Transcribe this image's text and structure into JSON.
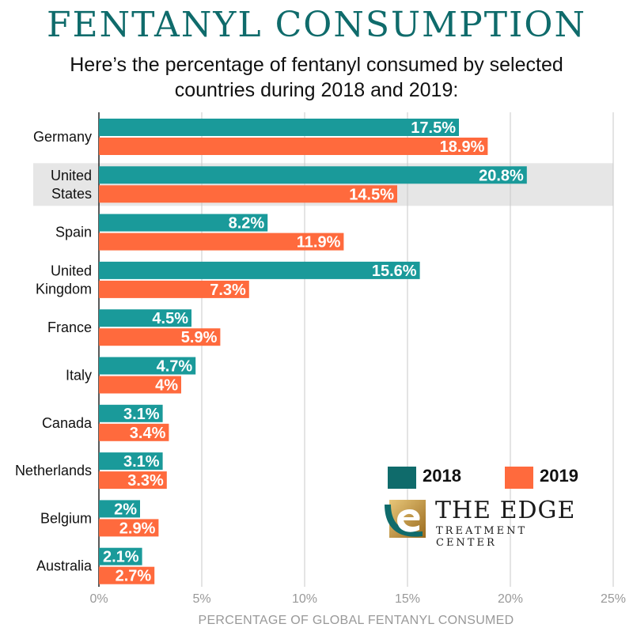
{
  "title": "FENTANYL CONSUMPTION",
  "subtitle": "Here’s the percentage of fentanyl consumed by selected countries during 2018 and 2019:",
  "logo": {
    "line1": "THE EDGE",
    "line2": "TREATMENT CENTER"
  },
  "colors": {
    "2018": "#1a9a9a",
    "2019": "#ff6a3d",
    "title": "#0f6b6b",
    "highlight": "#e6e6e6"
  },
  "chart_data": {
    "type": "bar",
    "orientation": "horizontal",
    "categories": [
      "Germany",
      "United States",
      "Spain",
      "United Kingdom",
      "France",
      "Italy",
      "Canada",
      "Netherlands",
      "Belgium",
      "Australia"
    ],
    "category_lines": [
      [
        "Germany"
      ],
      [
        "United",
        "States"
      ],
      [
        "Spain"
      ],
      [
        "United",
        "Kingdom"
      ],
      [
        "France"
      ],
      [
        "Italy"
      ],
      [
        "Canada"
      ],
      [
        "Netherlands"
      ],
      [
        "Belgium"
      ],
      [
        "Australia"
      ]
    ],
    "highlighted_category": "United States",
    "series": [
      {
        "name": "2018",
        "values": [
          17.5,
          20.8,
          8.2,
          15.6,
          4.5,
          4.7,
          3.1,
          3.1,
          2,
          2.1
        ],
        "labels": [
          "17.5%",
          "20.8%",
          "8.2%",
          "15.6%",
          "4.5%",
          "4.7%",
          "3.1%",
          "3.1%",
          "2%",
          "2.1%"
        ]
      },
      {
        "name": "2019",
        "values": [
          18.9,
          14.5,
          11.9,
          7.3,
          5.9,
          4,
          3.4,
          3.3,
          2.9,
          2.7
        ],
        "labels": [
          "18.9%",
          "14.5%",
          "11.9%",
          "7.3%",
          "5.9%",
          "4%",
          "3.4%",
          "3.3%",
          "2.9%",
          "2.7%"
        ]
      }
    ],
    "xlim": [
      0,
      25
    ],
    "xticks": [
      0,
      5,
      10,
      15,
      20,
      25
    ],
    "xtick_labels": [
      "0%",
      "5%",
      "10%",
      "15%",
      "20%",
      "25%"
    ],
    "xlabel": "PERCENTAGE OF GLOBAL FENTANYL CONSUMED",
    "grid": true,
    "legend_position": "bottom-right"
  }
}
